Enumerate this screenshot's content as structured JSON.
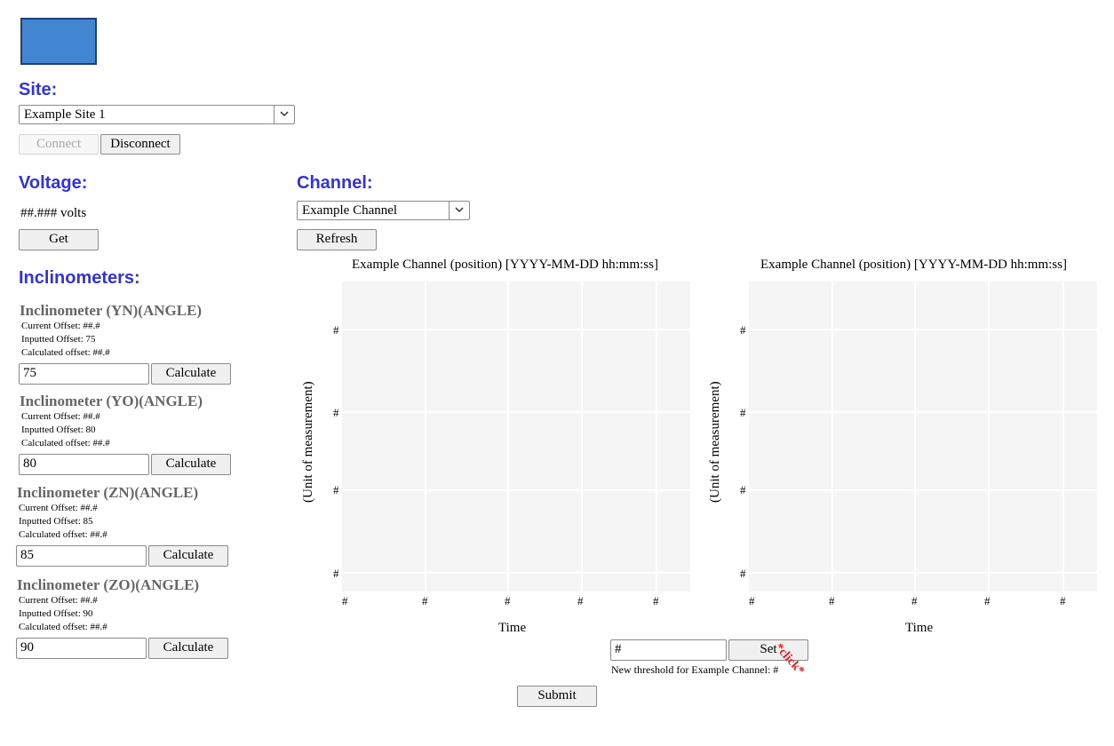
{
  "site": {
    "heading": "Site:",
    "selected": "Example Site 1",
    "connect_label": "Connect",
    "disconnect_label": "Disconnect"
  },
  "voltage": {
    "heading": "Voltage:",
    "value": "##.### volts",
    "get_label": "Get"
  },
  "inclinometers": {
    "heading": "Inclinometers:",
    "items": [
      {
        "title": "Inclinometer (YN)(ANGLE)",
        "current": "Current Offset: ##.#",
        "inputted": "Inputted Offset: 75",
        "calculated": "Calculated offset: ##.#",
        "input_value": "75",
        "button": "Calculate"
      },
      {
        "title": "Inclinometer (YO)(ANGLE)",
        "current": "Current Offset: ##.#",
        "inputted": "Inputted Offset: 80",
        "calculated": "Calculated offset: ##.#",
        "input_value": "80",
        "button": "Calculate"
      },
      {
        "title": "Inclinometer (ZN)(ANGLE)",
        "current": "Current Offset: ##.#",
        "inputted": "Inputted Offset: 85",
        "calculated": "Calculated offset: ##.#",
        "input_value": "85",
        "button": "Calculate"
      },
      {
        "title": "Inclinometer (ZO)(ANGLE)",
        "current": "Current Offset: ##.#",
        "inputted": "Inputted Offset: 90",
        "calculated": "Calculated offset: ##.#",
        "input_value": "90",
        "button": "Calculate"
      }
    ]
  },
  "channel": {
    "heading": "Channel:",
    "selected": "Example Channel",
    "refresh_label": "Refresh"
  },
  "charts": [
    {
      "title": "Example Channel (position) [YYYY-MM-DD hh:mm:ss]",
      "ylabel": "(Unit of measurement)",
      "xlabel": "Time",
      "y_ticks": [
        "#",
        "#",
        "#",
        "#"
      ],
      "x_ticks": [
        "#",
        "#",
        "#",
        "#",
        "#"
      ]
    },
    {
      "title": "Example Channel (position) [YYYY-MM-DD hh:mm:ss]",
      "ylabel": "(Unit of measurement)",
      "xlabel": "Time",
      "y_ticks": [
        "#",
        "#",
        "#",
        "#"
      ],
      "x_ticks": [
        "#",
        "#",
        "#",
        "#",
        "#"
      ]
    }
  ],
  "threshold": {
    "input_value": "#",
    "set_label": "Set",
    "click_annotation": "*click*",
    "note": "New threshold for Example Channel: #"
  },
  "submit_label": "Submit",
  "colors": {
    "heading": "#3333dd",
    "logo": "#4285d1",
    "plot_bg": "#f5f5f5",
    "annotation": "#e02020"
  }
}
